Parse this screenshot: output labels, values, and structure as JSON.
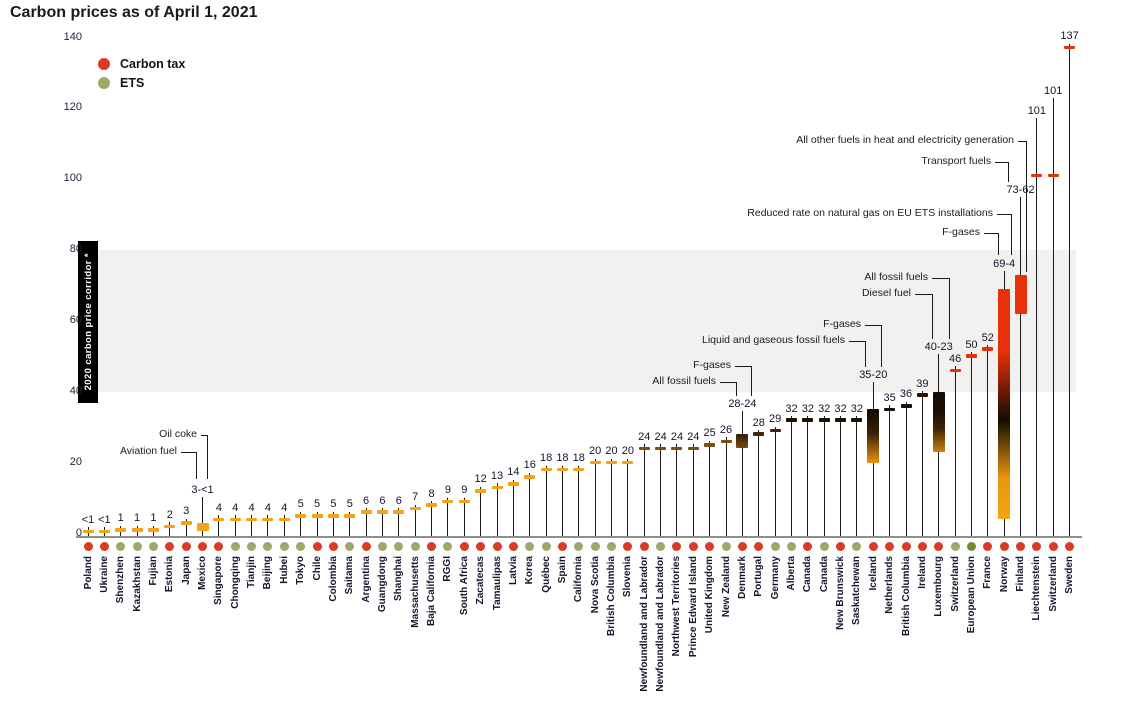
{
  "title": "Carbon prices as of April 1, 2021",
  "legend": {
    "items": [
      {
        "label": "Carbon tax",
        "color": "#DB3B22"
      },
      {
        "label": "ETS",
        "color": "#9BA969"
      }
    ]
  },
  "corridor": {
    "label": "2020 carbon price corridor *",
    "band_low": 40,
    "band_high": 80
  },
  "chart_data": {
    "type": "lollipop",
    "title": "Carbon prices as of April 1, 2021",
    "ylim": [
      0,
      140
    ],
    "y_ticks": [
      0,
      20,
      40,
      60,
      80,
      100,
      120,
      140
    ],
    "corridor_band": [
      40,
      80
    ],
    "grid": false,
    "legend_position": "top-left",
    "dot_colors": {
      "tax": "#DB3B22",
      "ets": "#9BA969",
      "ets_eu": "#6F8B2D"
    },
    "items": [
      {
        "name": "Poland",
        "type": "tax",
        "label": "<1",
        "value": 0.6,
        "color": "#F5A216"
      },
      {
        "name": "Ukraine",
        "type": "tax",
        "label": "<1",
        "value": 0.6,
        "color": "#F5A216"
      },
      {
        "name": "Shenzhen",
        "type": "ets",
        "label": "1",
        "value": 1,
        "color": "#F5A216"
      },
      {
        "name": "Kazakhstan",
        "type": "ets",
        "label": "1",
        "value": 1,
        "color": "#F5A216"
      },
      {
        "name": "Fujian",
        "type": "ets",
        "label": "1",
        "value": 1,
        "color": "#F5A216"
      },
      {
        "name": "Estonia",
        "type": "tax",
        "label": "2",
        "value": 2,
        "color": "#F5A216"
      },
      {
        "name": "Japan",
        "type": "tax",
        "label": "3",
        "value": 3,
        "color": "#F5A216"
      },
      {
        "name": "Mexico",
        "type": "tax",
        "label": "3-<1",
        "value": 3,
        "low": 0.6,
        "bar": true,
        "color": "#F6A41B",
        "label_y": 490
      },
      {
        "name": "Singapore",
        "type": "tax",
        "label": "4",
        "value": 4,
        "color": "#F5A216"
      },
      {
        "name": "Chongqing",
        "type": "ets",
        "label": "4",
        "value": 4,
        "color": "#F5A216"
      },
      {
        "name": "Tianjin",
        "type": "ets",
        "label": "4",
        "value": 4,
        "color": "#F5A216"
      },
      {
        "name": "Beijing",
        "type": "ets",
        "label": "4",
        "value": 4,
        "color": "#F5A216"
      },
      {
        "name": "Hubei",
        "type": "ets",
        "label": "4",
        "value": 4,
        "color": "#F5A216"
      },
      {
        "name": "Tokyo",
        "type": "ets",
        "label": "5",
        "value": 5,
        "color": "#F5A216"
      },
      {
        "name": "Chile",
        "type": "tax",
        "label": "5",
        "value": 5,
        "color": "#F5A216"
      },
      {
        "name": "Colombia",
        "type": "tax",
        "label": "5",
        "value": 5,
        "color": "#F5A216"
      },
      {
        "name": "Saitama",
        "type": "ets",
        "label": "5",
        "value": 5,
        "color": "#F5A216"
      },
      {
        "name": "Argentina",
        "type": "tax",
        "label": "6",
        "value": 6,
        "color": "#F5A216"
      },
      {
        "name": "Guangdong",
        "type": "ets",
        "label": "6",
        "value": 6,
        "color": "#F5A216"
      },
      {
        "name": "Shanghai",
        "type": "ets",
        "label": "6",
        "value": 6,
        "color": "#F5A216"
      },
      {
        "name": "Massachusetts",
        "type": "ets",
        "label": "7",
        "value": 7,
        "color": "#F5A216"
      },
      {
        "name": "Baja California",
        "type": "tax",
        "label": "8",
        "value": 8,
        "color": "#F5A216"
      },
      {
        "name": "RGGI",
        "type": "ets",
        "label": "9",
        "value": 9,
        "color": "#F5A216"
      },
      {
        "name": "South Africa",
        "type": "tax",
        "label": "9",
        "value": 9,
        "color": "#F5A216"
      },
      {
        "name": "Zacatecas",
        "type": "tax",
        "label": "12",
        "value": 12,
        "color": "#F5A216"
      },
      {
        "name": "Tamaulipas",
        "type": "tax",
        "label": "13",
        "value": 13,
        "color": "#F5A216"
      },
      {
        "name": "Latvia",
        "type": "tax",
        "label": "14",
        "value": 14,
        "color": "#F5A216"
      },
      {
        "name": "Korea",
        "type": "ets",
        "label": "16",
        "value": 16,
        "color": "#F5A216"
      },
      {
        "name": "Québec",
        "type": "ets",
        "label": "18",
        "value": 18,
        "color": "#F5A216"
      },
      {
        "name": "Spain",
        "type": "tax",
        "label": "18",
        "value": 18,
        "color": "#F5A216"
      },
      {
        "name": "California",
        "type": "ets",
        "label": "18",
        "value": 18,
        "color": "#F5A216"
      },
      {
        "name": "Nova Scotia",
        "type": "ets",
        "label": "20",
        "value": 20,
        "color": "#F5A216"
      },
      {
        "name": "British Columbia",
        "type": "ets",
        "label": "20",
        "value": 20,
        "color": "#F5A216"
      },
      {
        "name": "Slovenia",
        "type": "tax",
        "label": "20",
        "value": 20,
        "color": "#F5A216"
      },
      {
        "name": "Newfoundland and Labrador",
        "type": "tax",
        "label": "24",
        "value": 24,
        "color": "#7A4D12"
      },
      {
        "name": "Newfoundland and Labrador",
        "type": "ets",
        "label": "24",
        "value": 24,
        "color": "#7A4D12"
      },
      {
        "name": "Northwest Territories",
        "type": "tax",
        "label": "24",
        "value": 24,
        "color": "#7A4D12"
      },
      {
        "name": "Prince Edward Island",
        "type": "tax",
        "label": "24",
        "value": 24,
        "color": "#7A4D12"
      },
      {
        "name": "United Kingdom",
        "type": "tax",
        "label": "25",
        "value": 25,
        "color": "#7A4D12"
      },
      {
        "name": "New Zealand",
        "type": "ets",
        "label": "26",
        "value": 26,
        "color": "#7A4D12"
      },
      {
        "name": "Denmark",
        "type": "tax",
        "label": "28-24",
        "value": 28,
        "low": 24,
        "bar": true,
        "gradient": [
          [
            "#2F1B06",
            0
          ],
          [
            "#7A4D12",
            100
          ]
        ],
        "label_y": 404
      },
      {
        "name": "Portugal",
        "type": "tax",
        "label": "28",
        "value": 28,
        "color": "#3F2408"
      },
      {
        "name": "Germany",
        "type": "ets",
        "label": "29",
        "value": 29,
        "color": "#3F2408"
      },
      {
        "name": "Alberta",
        "type": "ets",
        "label": "32",
        "value": 32,
        "color": "#1E1105"
      },
      {
        "name": "Canada",
        "type": "tax",
        "label": "32",
        "value": 32,
        "color": "#1E1105"
      },
      {
        "name": "Canada",
        "type": "ets",
        "label": "32",
        "value": 32,
        "color": "#1E1105"
      },
      {
        "name": "New Brunswick",
        "type": "tax",
        "label": "32",
        "value": 32,
        "color": "#1E1105"
      },
      {
        "name": "Saskatchewan",
        "type": "ets",
        "label": "32",
        "value": 32,
        "color": "#1E1105"
      },
      {
        "name": "Iceland",
        "type": "tax",
        "label": "35-20",
        "value": 35,
        "low": 20,
        "bar": true,
        "gradient": [
          [
            "#0F0A03",
            0
          ],
          [
            "#3A2106",
            45
          ],
          [
            "#E8940F",
            100
          ]
        ],
        "label_y": 375
      },
      {
        "name": "Netherlands",
        "type": "tax",
        "label": "35",
        "value": 35,
        "color": "#17100A"
      },
      {
        "name": "British Columbia",
        "type": "tax",
        "label": "36",
        "value": 36,
        "color": "#17100A"
      },
      {
        "name": "Ireland",
        "type": "tax",
        "label": "39",
        "value": 39,
        "color": "#330E05"
      },
      {
        "name": "Luxembourg",
        "type": "tax",
        "label": "40-23",
        "value": 40,
        "low": 23,
        "bar": true,
        "gradient": [
          [
            "#120B04",
            0
          ],
          [
            "#1A0F05",
            30
          ],
          [
            "#3A2106",
            60
          ],
          [
            "#C8810F",
            100
          ]
        ],
        "label_y": 347
      },
      {
        "name": "Switzerland",
        "type": "ets",
        "label": "46",
        "value": 46,
        "color": "#E73108"
      },
      {
        "name": "European Union",
        "type": "ets_eu",
        "label": "50",
        "value": 50,
        "color": "#E73108"
      },
      {
        "name": "France",
        "type": "tax",
        "label": "52",
        "value": 52,
        "color": "#E73108"
      },
      {
        "name": "Norway",
        "type": "tax",
        "label": "69-4",
        "value": 69,
        "low": 4,
        "bar": true,
        "gradient": [
          [
            "#E73108",
            0
          ],
          [
            "#E73108",
            27
          ],
          [
            "#140C04",
            57
          ],
          [
            "#E8940F",
            82
          ],
          [
            "#F7A511",
            100
          ]
        ],
        "label_y": 264
      },
      {
        "name": "Finland",
        "type": "tax",
        "label": "73-62",
        "value": 73,
        "low": 62,
        "bar": true,
        "color": "#E73108",
        "label_y": 190
      },
      {
        "name": "Liechtenstein",
        "type": "tax",
        "label": "101",
        "value": 101,
        "color": "#E73108",
        "label_y": 111
      },
      {
        "name": "Switzerland",
        "type": "tax",
        "label": "101",
        "value": 101,
        "color": "#E73108",
        "label_y": 91
      },
      {
        "name": "Sweden",
        "type": "tax",
        "label": "137",
        "value": 137,
        "color": "#E73108"
      }
    ],
    "annotations": [
      {
        "text": "Oil coke",
        "right": 197,
        "y": 435,
        "elbow": 207,
        "end": 479
      },
      {
        "text": "Aviation fuel",
        "right": 177,
        "y": 452,
        "elbow": 196,
        "end": 479
      },
      {
        "text": "All fossil fuels",
        "right": 716,
        "y": 382,
        "elbow": 736,
        "end": 396
      },
      {
        "text": "F-gases",
        "right": 731,
        "y": 366,
        "elbow": 751,
        "end": 396
      },
      {
        "text": "Liquid and gaseous fossil fuels",
        "right": 845,
        "y": 341,
        "elbow": 865,
        "end": 367
      },
      {
        "text": "F-gases",
        "right": 861,
        "y": 325,
        "elbow": 881,
        "end": 367
      },
      {
        "text": "Diesel fuel",
        "right": 911,
        "y": 294,
        "elbow": 932,
        "end": 339
      },
      {
        "text": "All fossil fuels",
        "right": 928,
        "y": 278,
        "elbow": 949,
        "end": 339
      },
      {
        "text": "Reduced rate on natural gas on EU ETS installations",
        "right": 993,
        "y": 214,
        "elbow": 1011,
        "end": 255
      },
      {
        "text": "F-gases",
        "right": 980,
        "y": 233,
        "elbow": 998,
        "end": 255
      },
      {
        "text": "All other fuels in heat and electricity generation",
        "right": 1014,
        "y": 141,
        "elbow": 1026,
        "end": 272
      },
      {
        "text": "Transport fuels",
        "right": 991,
        "y": 162,
        "elbow": 1008,
        "end": 182
      }
    ]
  }
}
